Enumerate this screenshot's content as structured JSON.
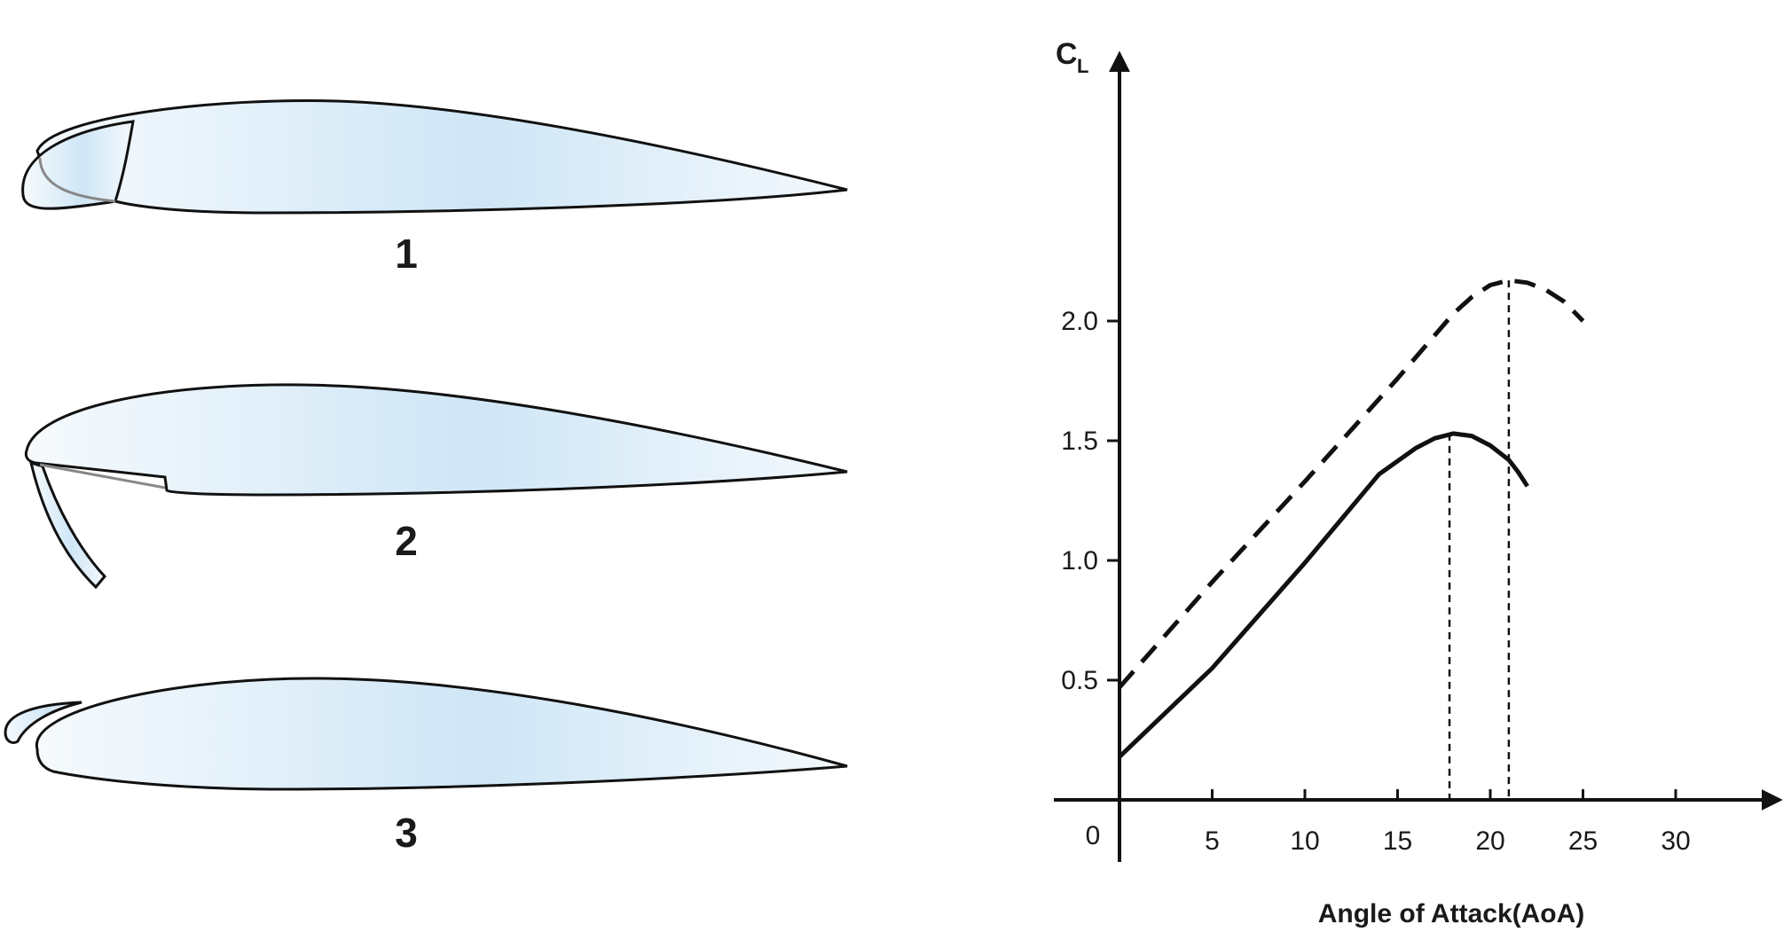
{
  "airfoils": [
    {
      "label": "1",
      "device": "krueger-flap"
    },
    {
      "label": "2",
      "device": "leading-edge-flap"
    },
    {
      "label": "3",
      "device": "slat"
    }
  ],
  "colors": {
    "outline": "#111111",
    "fill_light": "#f4f9fd",
    "fill_mid": "#cfe6f6",
    "axis": "#111111"
  },
  "chart_data": {
    "type": "line",
    "ylabel_main": "C",
    "ylabel_sub": "L",
    "xlabel": "Angle of Attack(AoA)",
    "origin_label": "0",
    "xlim": [
      0,
      36
    ],
    "ylim": [
      -0.2,
      2.45
    ],
    "x_ticks": [
      5,
      10,
      15,
      20,
      25,
      30
    ],
    "y_ticks": [
      0.5,
      1.0,
      1.5,
      2.0
    ],
    "x_tick_labels": [
      "5",
      "10",
      "15",
      "20",
      "25",
      "30"
    ],
    "y_tick_labels": [
      "0.5",
      "1.0",
      "1.5",
      "2.0"
    ],
    "series": [
      {
        "style": "solid",
        "x": [
          0,
          5,
          10,
          14,
          16,
          17,
          18,
          19,
          20,
          21,
          21.5,
          22
        ],
        "y": [
          0.18,
          0.55,
          0.99,
          1.36,
          1.47,
          1.51,
          1.53,
          1.52,
          1.48,
          1.42,
          1.37,
          1.31
        ]
      },
      {
        "style": "dashed",
        "x": [
          0,
          5,
          10,
          15,
          18,
          19,
          20,
          21,
          22,
          23,
          24,
          25
        ],
        "y": [
          0.47,
          0.91,
          1.33,
          1.76,
          2.03,
          2.1,
          2.15,
          2.17,
          2.16,
          2.13,
          2.08,
          2.0
        ]
      }
    ],
    "stall_markers": [
      {
        "x": 17.8,
        "y": 1.53
      },
      {
        "x": 21,
        "y": 2.17
      }
    ]
  }
}
